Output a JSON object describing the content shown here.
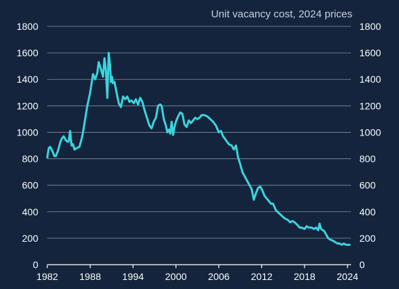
{
  "chart_data": {
    "type": "line",
    "title": "Unit vacancy cost, 2024 prices",
    "xlabel": "",
    "ylabel": "",
    "xlim": [
      1982,
      2024.5
    ],
    "ylim": [
      0,
      1800
    ],
    "x_ticks": [
      1982,
      1988,
      1994,
      2000,
      2006,
      2012,
      2018,
      2024
    ],
    "y_ticks": [
      0,
      200,
      400,
      600,
      800,
      1000,
      1200,
      1400,
      1600,
      1800
    ],
    "y_axis_right": true,
    "grid": "horizontal",
    "colors": {
      "line": "#3cd3dc",
      "background": "#13243c",
      "grid": "#a9b4c2",
      "text": "#ffffff"
    },
    "series": [
      {
        "x": [
          1982.0,
          1982.2,
          1982.4,
          1982.7,
          1983.0,
          1983.2,
          1983.5,
          1983.8,
          1984.0,
          1984.3,
          1984.6,
          1984.8,
          1985.0,
          1985.2,
          1985.4,
          1985.6,
          1985.8,
          1986.1,
          1986.5,
          1986.8,
          1987.0,
          1987.3,
          1987.6,
          1988.0,
          1988.4,
          1988.7,
          1989.0,
          1989.2,
          1989.5,
          1989.8,
          1990.0,
          1990.2,
          1990.4,
          1990.6,
          1990.8,
          1990.9,
          1991.05,
          1991.2,
          1991.4,
          1991.7,
          1992.0,
          1992.3,
          1992.6,
          1992.9,
          1993.2,
          1993.5,
          1993.8,
          1994.1,
          1994.4,
          1994.7,
          1995.0,
          1995.3,
          1995.6,
          1996.0,
          1996.3,
          1996.6,
          1996.9,
          1997.2,
          1997.5,
          1997.8,
          1998.0,
          1998.3,
          1998.6,
          1998.8,
          1999.0,
          1999.2,
          1999.4,
          1999.6,
          1999.8,
          2000.0,
          2000.3,
          2000.6,
          2000.9,
          2001.2,
          2001.5,
          2001.8,
          2002.1,
          2002.4,
          2002.7,
          2003.0,
          2003.3,
          2003.6,
          2004.0,
          2004.4,
          2004.8,
          2005.2,
          2005.6,
          2006.0,
          2006.3,
          2006.6,
          2007.0,
          2007.4,
          2007.8,
          2008.1,
          2008.4,
          2008.7,
          2009.0,
          2009.3,
          2009.6,
          2010.0,
          2010.3,
          2010.6,
          2010.9,
          2011.2,
          2011.5,
          2011.8,
          2012.1,
          2012.4,
          2012.7,
          2013.0,
          2013.3,
          2013.6,
          2014.0,
          2014.4,
          2014.8,
          2015.2,
          2015.6,
          2016.0,
          2016.3,
          2016.6,
          2017.0,
          2017.3,
          2017.6,
          2018.0,
          2018.3,
          2018.6,
          2019.0,
          2019.3,
          2019.6,
          2019.9,
          2020.1,
          2020.3,
          2020.6,
          2020.8,
          2021.0,
          2021.3,
          2021.6,
          2022.0,
          2022.3,
          2022.6,
          2022.9,
          2023.2,
          2023.5,
          2023.8,
          2024.0,
          2024.3
        ],
        "values": [
          810,
          880,
          890,
          860,
          820,
          820,
          860,
          920,
          950,
          970,
          940,
          930,
          930,
          1010,
          900,
          910,
          870,
          880,
          890,
          950,
          1000,
          1100,
          1200,
          1300,
          1440,
          1400,
          1450,
          1530,
          1480,
          1420,
          1560,
          1470,
          1260,
          1600,
          1500,
          1380,
          1420,
          1370,
          1380,
          1300,
          1220,
          1190,
          1270,
          1250,
          1270,
          1230,
          1240,
          1220,
          1250,
          1210,
          1260,
          1230,
          1170,
          1100,
          1050,
          1030,
          1080,
          1110,
          1200,
          1210,
          1200,
          1100,
          1050,
          1000,
          1020,
          990,
          1080,
          980,
          1040,
          1080,
          1120,
          1150,
          1140,
          1060,
          1040,
          1090,
          1070,
          1090,
          1110,
          1100,
          1110,
          1130,
          1130,
          1120,
          1100,
          1080,
          1050,
          1000,
          1010,
          970,
          940,
          910,
          900,
          870,
          900,
          810,
          760,
          700,
          670,
          630,
          600,
          570,
          490,
          540,
          580,
          590,
          560,
          520,
          500,
          480,
          460,
          460,
          410,
          390,
          370,
          350,
          340,
          320,
          330,
          320,
          300,
          280,
          280,
          270,
          290,
          280,
          280,
          270,
          280,
          260,
          310,
          270,
          260,
          250,
          230,
          200,
          190,
          180,
          170,
          160,
          160,
          150,
          160,
          150,
          150,
          150
        ]
      }
    ]
  }
}
